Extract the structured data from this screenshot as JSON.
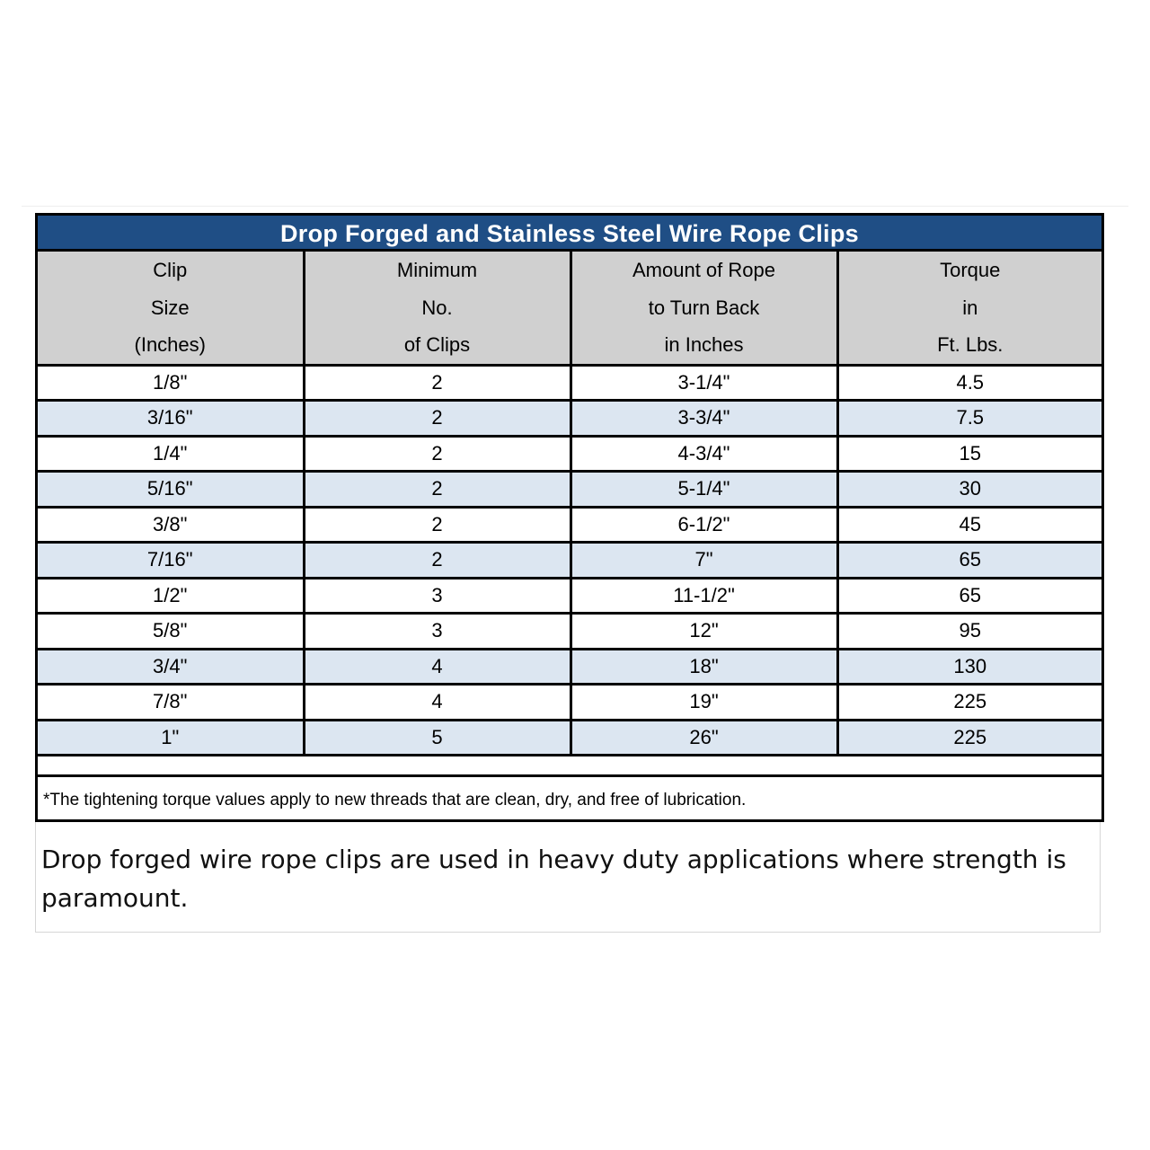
{
  "title": "Drop Forged and Stainless Steel Wire Rope Clips",
  "headers": [
    [
      "Clip",
      "Size",
      "(Inches)"
    ],
    [
      "Minimum",
      "No.",
      "of Clips"
    ],
    [
      "Amount of Rope",
      "to Turn Back",
      "in Inches"
    ],
    [
      "Torque",
      "in",
      "Ft. Lbs."
    ]
  ],
  "rows": [
    [
      "1/8\"",
      "2",
      "3-1/4\"",
      "4.5"
    ],
    [
      "3/16\"",
      "2",
      "3-3/4\"",
      "7.5"
    ],
    [
      "1/4\"",
      "2",
      "4-3/4\"",
      "15"
    ],
    [
      "5/16\"",
      "2",
      "5-1/4\"",
      "30"
    ],
    [
      "3/8\"",
      "2",
      "6-1/2\"",
      "45"
    ],
    [
      "7/16\"",
      "2",
      "7\"",
      "65"
    ],
    [
      "1/2\"",
      "3",
      "11-1/2\"",
      "65"
    ],
    [
      "5/8\"",
      "3",
      "12\"",
      "95"
    ],
    [
      "3/4\"",
      "4",
      "18\"",
      "130"
    ],
    [
      "7/8\"",
      "4",
      "19\"",
      "225"
    ],
    [
      "1\"",
      "5",
      "26\"",
      "225"
    ]
  ],
  "row_shading": [
    "white",
    "blue",
    "white",
    "blue",
    "white",
    "blue",
    "white",
    "white",
    "blue",
    "white",
    "blue"
  ],
  "note": "*The tightening torque values apply to new threads that are clean, dry, and free of lubrication.",
  "description": "Drop forged wire rope clips are used in  heavy duty applications where strength is paramount.",
  "colors": {
    "title_bar": "#1f4e85",
    "header_bg": "#d0d0d0",
    "row_blue": "#dce6f1",
    "row_white": "#ffffff"
  }
}
